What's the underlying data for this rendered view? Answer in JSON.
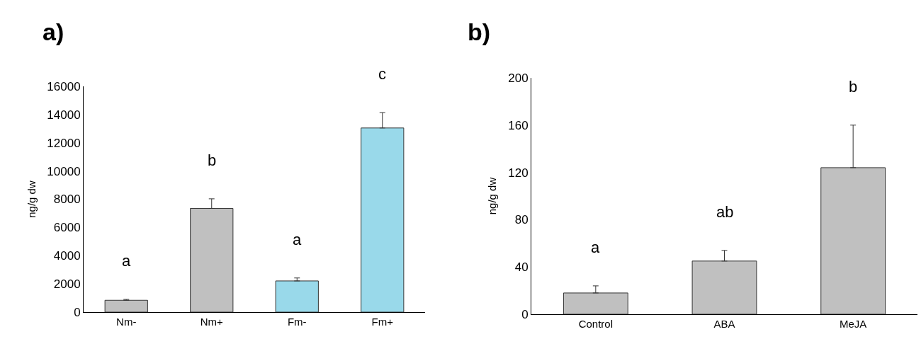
{
  "chart_data": [
    {
      "type": "bar",
      "title": "a)",
      "ylabel": "ng/g dw",
      "categories": [
        "Nm-",
        "Nm+",
        "Fm-",
        "Fm+"
      ],
      "values": [
        840,
        7350,
        2210,
        13050
      ],
      "colors": [
        "#c0c0c0",
        "#c0c0c0",
        "#99d9ea",
        "#99d9ea"
      ],
      "errors": [
        [
          840,
          900
        ],
        [
          7350,
          8030
        ],
        [
          2210,
          2420
        ],
        [
          13050,
          14140
        ]
      ],
      "ylim": [
        0,
        16000
      ],
      "yticks": [
        0,
        2000,
        4000,
        6000,
        8000,
        10000,
        12000,
        14000,
        16000
      ],
      "grid": false,
      "annotations": [
        "a",
        "b",
        "a",
        "c"
      ]
    },
    {
      "type": "bar",
      "title": "b)",
      "ylabel": "ng/g dw",
      "categories": [
        "Control",
        "ABA",
        "MeJA"
      ],
      "values": [
        18,
        45,
        124
      ],
      "colors": [
        "#c0c0c0",
        "#c0c0c0",
        "#c0c0c0"
      ],
      "errors": [
        [
          18,
          24
        ],
        [
          45,
          54
        ],
        [
          124,
          160
        ]
      ],
      "ylim": [
        0,
        200
      ],
      "yticks": [
        0,
        40,
        80,
        120,
        160,
        200
      ],
      "grid": false,
      "annotations": [
        "a",
        "ab",
        "b"
      ]
    }
  ]
}
